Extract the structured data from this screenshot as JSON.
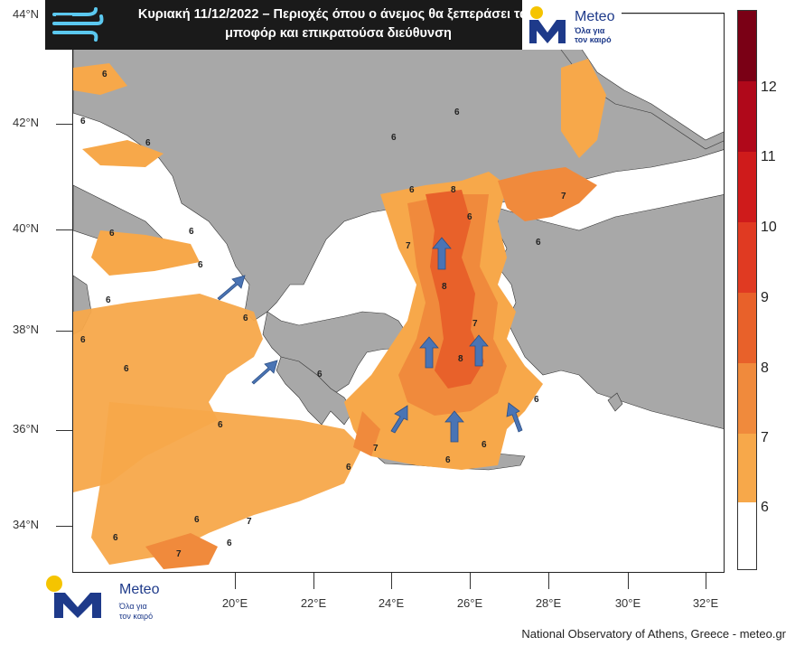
{
  "title": {
    "line1": "Κυριακή 11/12/2022 – Περιοχές όπου ο άνεμος θα ξεπεράσει τα 6",
    "line2": "μποφόρ και επικρατούσα διεύθυνση"
  },
  "logo": {
    "name": "Meteo",
    "tagline_1": "Όλα για",
    "tagline_2": "τον καιρό"
  },
  "axes": {
    "lat_labels": [
      "44°N",
      "42°N",
      "40°N",
      "38°N",
      "36°N",
      "34°N"
    ],
    "lon_labels": [
      "20°E",
      "22°E",
      "24°E",
      "26°E",
      "28°E",
      "30°E",
      "32°E"
    ]
  },
  "colorbar": {
    "labels": [
      "12",
      "11",
      "10",
      "9",
      "8",
      "7",
      "6"
    ],
    "colors": {
      "below_6": "#ffffff",
      "6_7": "#f7a84a",
      "7_8": "#f08a3c",
      "8_9": "#e8612a",
      "9_10": "#e03a22",
      "10_11": "#cf1b1b",
      "11_12": "#b0081a",
      "12_plus": "#7a0015"
    }
  },
  "map_colors": {
    "land": "#a8a8a8",
    "sea": "#ffffff",
    "wind_6": "#f7a84a",
    "wind_7": "#f08a3c",
    "wind_8": "#e8612a",
    "arrow": "#4a74b4"
  },
  "map_values": [
    "6",
    "7",
    "8"
  ],
  "footer": "National Observatory of Athens, Greece - meteo.gr"
}
